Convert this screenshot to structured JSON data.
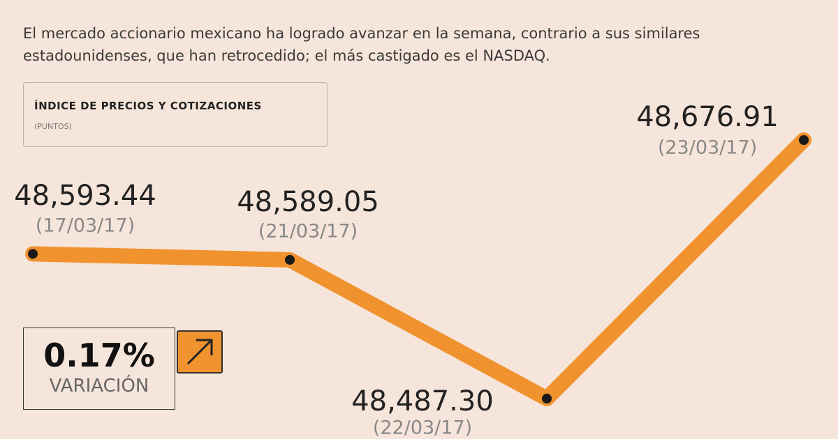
{
  "chart_data": {
    "type": "line",
    "subtitle": "El mercado accionario mexicano ha logrado avanzar en la semana, contrario a sus similares estadounidenses, que han retrocedido; el más castigado es el NASDAQ.",
    "series_title": "ÍNDICE DE PRECIOS Y COTIZACIONES",
    "unit": "(PUNTOS)",
    "categories": [
      "(17/03/17)",
      "(21/03/17)",
      "(22/03/17)",
      "(23/03/17)"
    ],
    "values": [
      48593.44,
      48589.05,
      48487.3,
      48676.91
    ],
    "value_labels": [
      "48,593.44",
      "48,589.05",
      "48,487.30",
      "48,676.91"
    ],
    "color": "#f0922e",
    "variation": "0.17%",
    "variation_label": "VARIACIÓN"
  }
}
